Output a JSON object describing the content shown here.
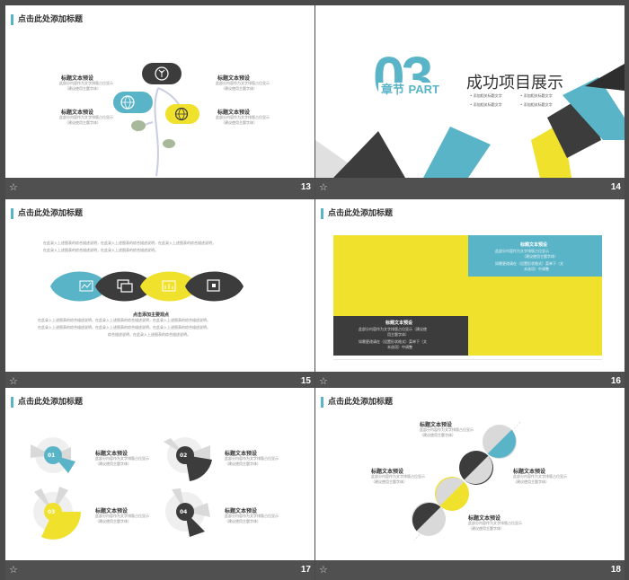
{
  "colors": {
    "teal": "#5ab4c8",
    "yellow": "#f0e12c",
    "dark": "#3c3c3c",
    "grey": "#d9d9d9"
  },
  "footer_icon": "☆",
  "slides": [
    {
      "number": "13",
      "title": "点击此处添加标题",
      "items": [
        {
          "heading": "标题文本预设",
          "l1": "此部分内容作为文字排版占位显示",
          "l2": "（建议使用主题字体）"
        },
        {
          "heading": "标题文本预设",
          "l1": "此部分内容作为文字排版占位显示",
          "l2": "（建议使用主题字体）"
        },
        {
          "heading": "标题文本预设",
          "l1": "此部分内容作为文字排版占位显示",
          "l2": "（建议使用主题字体）"
        },
        {
          "heading": "标题文本预设",
          "l1": "此部分内容作为文字排版占位显示",
          "l2": "（建议使用主题字体）"
        }
      ],
      "icons": [
        "sprout-icon",
        "globe-icon",
        "globe-icon"
      ]
    },
    {
      "number": "14",
      "big_number": "03",
      "chapter": "章节",
      "part": "PART",
      "title": "成功项目展示",
      "bullets": [
        "添加相关标题文字",
        "添加相关标题文字",
        "添加相关标题文字",
        "添加相关标题文字"
      ]
    },
    {
      "number": "15",
      "title": "点击此处添加标题",
      "para1": [
        "在此录入上述图表的综合描述说明，在此录入上述图表的综合描述说明，在此录入上述图表的综合描述说明，",
        "在此录入上述图表的综合描述说明，在此录入上述图表的综合描述说明。"
      ],
      "center_label": "点击添加主要观点",
      "para2": [
        "在此录入上述图表的综合描述说明，在此录入上述图表的综合描述说明，在此录入上述图表的综合描述说明，",
        "在此录入上述图表的综合描述说明，在此录入上述图表的综合描述说明，在此录入上述图表的综合描述说明，",
        "综合描述说明，在此录入上述图表的综合描述说明。"
      ],
      "icons": [
        "chart-icon",
        "window-icon",
        "dashboard-icon",
        "calendar-icon"
      ]
    },
    {
      "number": "16",
      "title": "点击此处添加标题",
      "top_card": {
        "heading": "标题文本预设",
        "l1": "此部分内容作为文字排版占位显示",
        "l2": "（建议使用主题字体）",
        "l3": "如需更改请在（设置形状格式）菜单下（文",
        "l4": "本选项）中调整"
      },
      "bottom_card": {
        "heading": "标题文本预设",
        "l1": "此部分内容作为文字排版占位显示（建议使",
        "l2": "用主题字体）",
        "l3": "如需更改请在（设置形状格式）菜单下（文",
        "l4": "本选项）中调整"
      }
    },
    {
      "number": "17",
      "title": "点击此处添加标题",
      "items": [
        {
          "num": "01",
          "heading": "标题文本预设",
          "l1": "此部分内容作为文字排版占位显示",
          "l2": "（建议使用主题字体）"
        },
        {
          "num": "02",
          "heading": "标题文本预设",
          "l1": "此部分内容作为文字排版占位显示",
          "l2": "（建议使用主题字体）"
        },
        {
          "num": "03",
          "heading": "标题文本预设",
          "l1": "此部分内容作为文字排版占位显示",
          "l2": "（建议使用主题字体）"
        },
        {
          "num": "04",
          "heading": "标题文本预设",
          "l1": "此部分内容作为文字排版占位显示",
          "l2": "（建议使用主题字体）"
        }
      ]
    },
    {
      "number": "18",
      "title": "点击此处添加标题",
      "items": [
        {
          "heading": "标题文本预设",
          "l1": "此部分内容作为文字排版占位显示",
          "l2": "（建议使用主题字体）"
        },
        {
          "heading": "标题文本预设",
          "l1": "此部分内容作为文字排版占位显示",
          "l2": "（建议使用主题字体）"
        },
        {
          "heading": "标题文本预设",
          "l1": "此部分内容作为文字排版占位显示",
          "l2": "（建议使用主题字体）"
        },
        {
          "heading": "标题文本预设",
          "l1": "此部分内容作为文字排版占位显示",
          "l2": "（建议使用主题字体）"
        }
      ]
    }
  ]
}
